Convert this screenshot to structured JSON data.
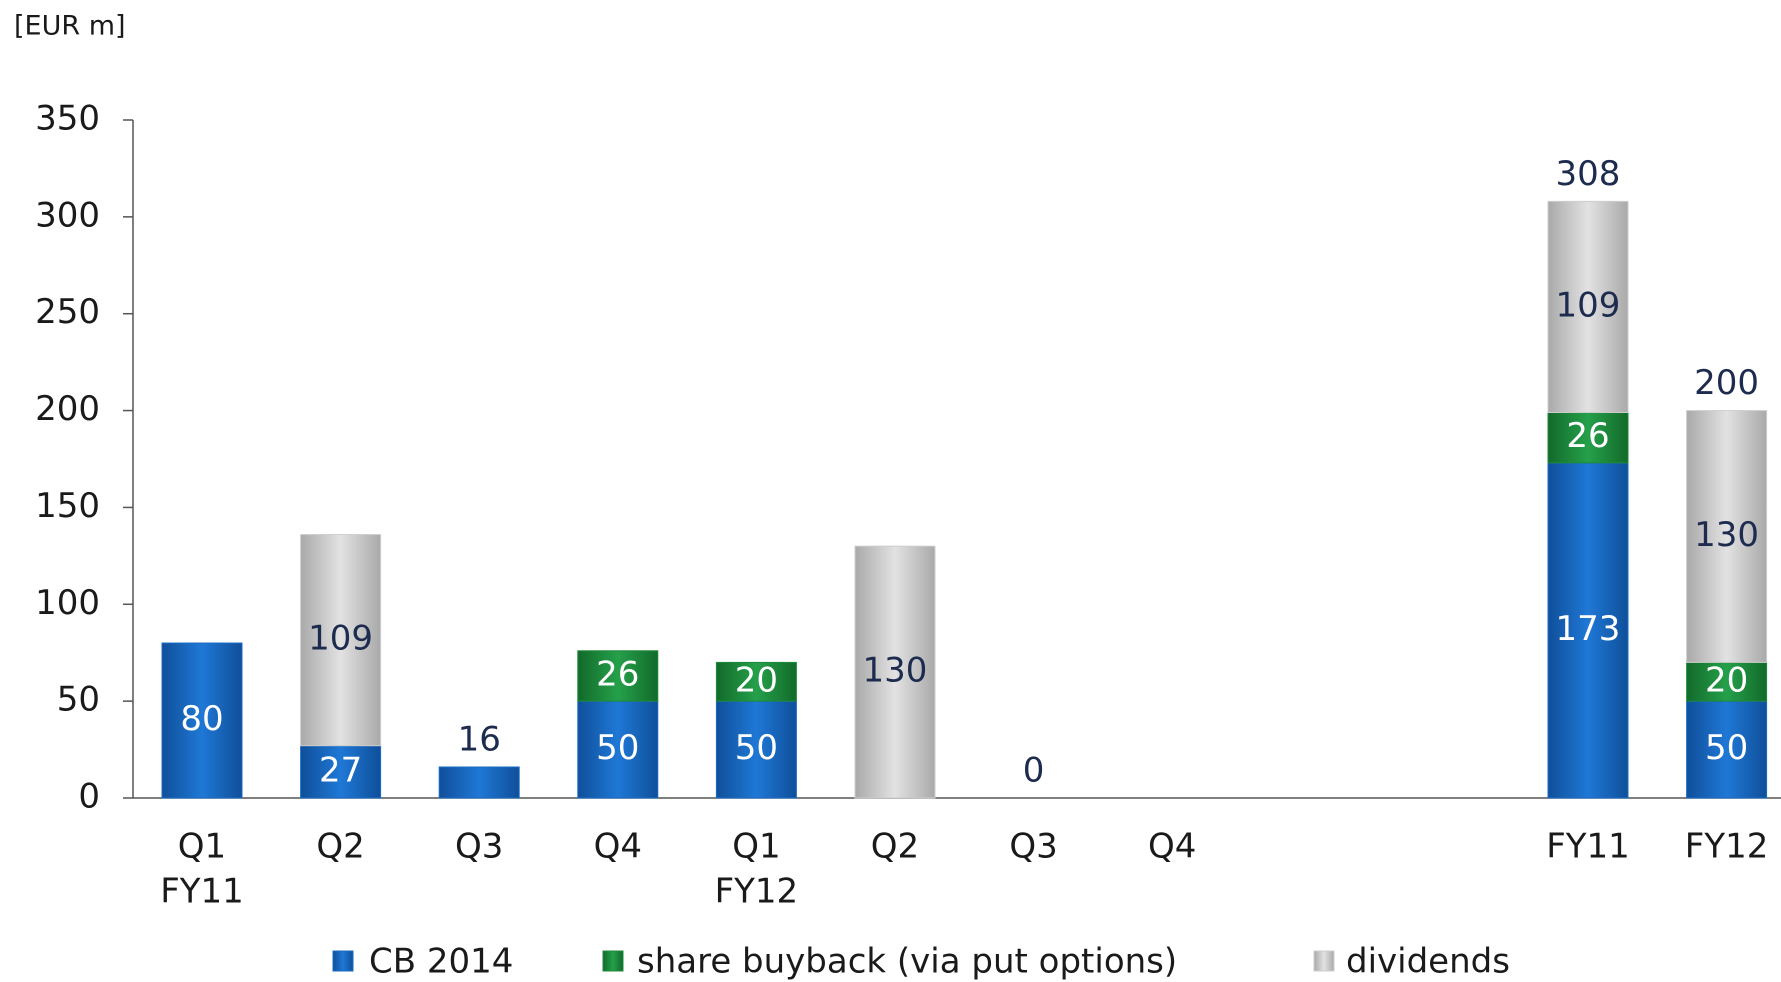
{
  "chart_data": {
    "type": "stacked_bar",
    "unit_label": "[EUR m]",
    "categories": [
      [
        "Q1",
        "FY11"
      ],
      [
        "Q2"
      ],
      [
        "Q3"
      ],
      [
        "Q4"
      ],
      [
        "Q1",
        "FY12"
      ],
      [
        "Q2"
      ],
      [
        "Q3"
      ],
      [
        "Q4"
      ],
      null,
      null,
      [
        "FY11"
      ],
      [
        "FY12"
      ]
    ],
    "series": [
      {
        "name": "CB 2014",
        "color": "#1a6cc4",
        "values": [
          80,
          27,
          16,
          50,
          50,
          null,
          null,
          null,
          null,
          null,
          173,
          50
        ]
      },
      {
        "name": "share buyback (via put options)",
        "color": "#1e8a3c",
        "values": [
          null,
          null,
          null,
          26,
          20,
          null,
          null,
          null,
          null,
          null,
          26,
          20
        ]
      },
      {
        "name": "dividends",
        "color": "#cdcdcd",
        "values": [
          null,
          109,
          null,
          null,
          null,
          130,
          null,
          null,
          null,
          null,
          109,
          130
        ]
      }
    ],
    "totals": [
      null,
      null,
      16,
      null,
      null,
      null,
      0,
      null,
      null,
      null,
      308,
      200
    ],
    "ylim": [
      0,
      350
    ],
    "yticks": [
      0,
      50,
      100,
      150,
      200,
      250,
      300,
      350
    ]
  }
}
